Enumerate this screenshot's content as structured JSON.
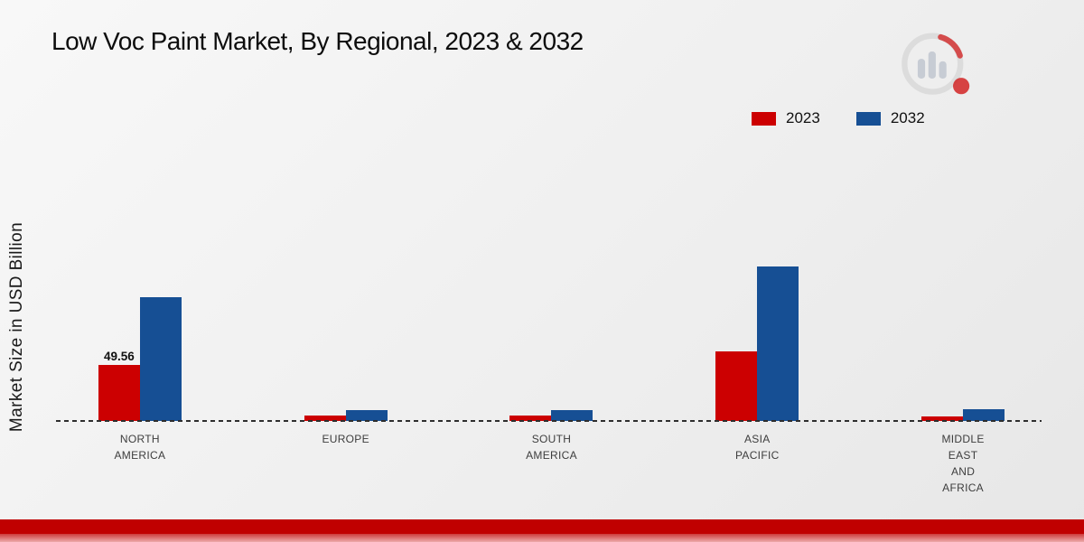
{
  "title": "Low Voc Paint Market, By Regional, 2023 & 2032",
  "ylabel": "Market Size in USD Billion",
  "legend": [
    {
      "label": "2023",
      "color": "#cc0001"
    },
    {
      "label": "2032",
      "color": "#164f94"
    }
  ],
  "colors": {
    "series_2023": "#cc0001",
    "series_2032": "#164f94",
    "baseline": "#2e2e2e",
    "bottom_strip": "#c00000"
  },
  "logo_name": "market-research-future-logo",
  "chart_data": {
    "type": "bar",
    "title": "Low Voc Paint Market, By Regional, 2023 & 2032",
    "xlabel": "",
    "ylabel": "Market Size in USD Billion",
    "categories": [
      "NORTH AMERICA",
      "EUROPE",
      "SOUTH AMERICA",
      "ASIA PACIFIC",
      "MIDDLE EAST AND AFRICA"
    ],
    "category_lines": [
      [
        "NORTH",
        "AMERICA"
      ],
      [
        "EUROPE"
      ],
      [
        "SOUTH",
        "AMERICA"
      ],
      [
        "ASIA",
        "PACIFIC"
      ],
      [
        "MIDDLE",
        "EAST",
        "AND",
        "AFRICA"
      ]
    ],
    "series": [
      {
        "name": "2023",
        "color": "#cc0001",
        "values": [
          49.56,
          5,
          4.5,
          62,
          4
        ],
        "labels": [
          "49.56",
          "",
          "",
          "",
          ""
        ]
      },
      {
        "name": "2032",
        "color": "#164f94",
        "values": [
          110,
          9.5,
          10,
          137,
          10.5
        ],
        "labels": [
          "",
          "",
          "",
          "",
          ""
        ]
      }
    ],
    "ylim": [
      0,
      150
    ],
    "grid": false,
    "legend_position": "top-right",
    "baseline_style": "dashed"
  }
}
